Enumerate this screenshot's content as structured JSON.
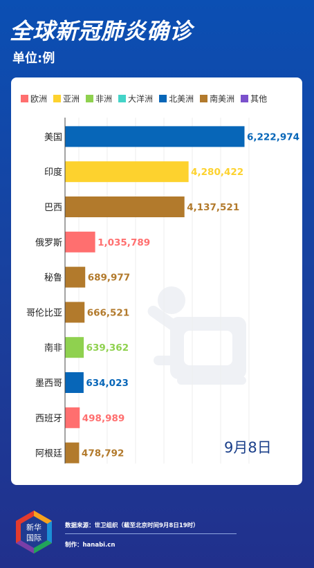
{
  "header": {
    "title": "全球新冠肺炎确诊",
    "unit": "单位:例"
  },
  "legend": [
    {
      "label": "欧洲",
      "color": "#ff6f6f"
    },
    {
      "label": "亚洲",
      "color": "#fdd22e"
    },
    {
      "label": "非洲",
      "color": "#8fd14f"
    },
    {
      "label": "大洋洲",
      "color": "#44d4c8"
    },
    {
      "label": "北美洲",
      "color": "#0766b8"
    },
    {
      "label": "南美洲",
      "color": "#b27a2c"
    },
    {
      "label": "其他",
      "color": "#7b51cc"
    }
  ],
  "chart_data": {
    "type": "bar",
    "orientation": "horizontal",
    "title": "全球新冠肺炎确诊",
    "unit": "单位:例",
    "categories": [
      "美国",
      "印度",
      "巴西",
      "俄罗斯",
      "秘鲁",
      "哥伦比亚",
      "南非",
      "墨西哥",
      "西班牙",
      "阿根廷"
    ],
    "values": [
      6222974,
      4280422,
      4137521,
      1035789,
      689977,
      666521,
      639362,
      634023,
      498989,
      478792
    ],
    "value_labels": [
      "6,222,974",
      "4,280,422",
      "4,137,521",
      "1,035,789",
      "689,977",
      "666,521",
      "639,362",
      "634,023",
      "498,989",
      "478,792"
    ],
    "continents": [
      "北美洲",
      "亚洲",
      "南美洲",
      "欧洲",
      "南美洲",
      "南美洲",
      "非洲",
      "北美洲",
      "欧洲",
      "南美洲"
    ],
    "xlim": [
      0,
      6222974
    ],
    "grid": true,
    "legend_position": "top"
  },
  "date_label": "9月8日",
  "footer": {
    "logo_line1": "新华",
    "logo_line2": "国际",
    "source": "数据来源：世卫组织（截至北京时间9月8日19时）",
    "credit": "制作：hanabi.cn"
  }
}
